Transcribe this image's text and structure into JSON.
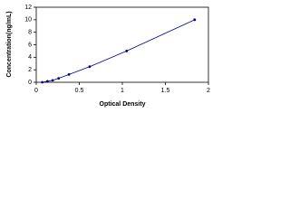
{
  "chart_data": {
    "type": "line",
    "x_label": "Optical Density",
    "y_label": "Concentration(ng/mL)",
    "xlim": [
      0,
      2
    ],
    "xticks": [
      0,
      0.5,
      1,
      1.5,
      2
    ],
    "ylim": [
      0,
      12
    ],
    "yticks": [
      0,
      2,
      4,
      6,
      8,
      10,
      12
    ],
    "series": [
      {
        "color": "#00008b",
        "x": [
          0.07,
          0.13,
          0.19,
          0.26,
          0.38,
          0.62,
          1.05,
          1.84
        ],
        "values": [
          0,
          0.156,
          0.312,
          0.625,
          1.25,
          2.5,
          5,
          10
        ]
      }
    ]
  }
}
